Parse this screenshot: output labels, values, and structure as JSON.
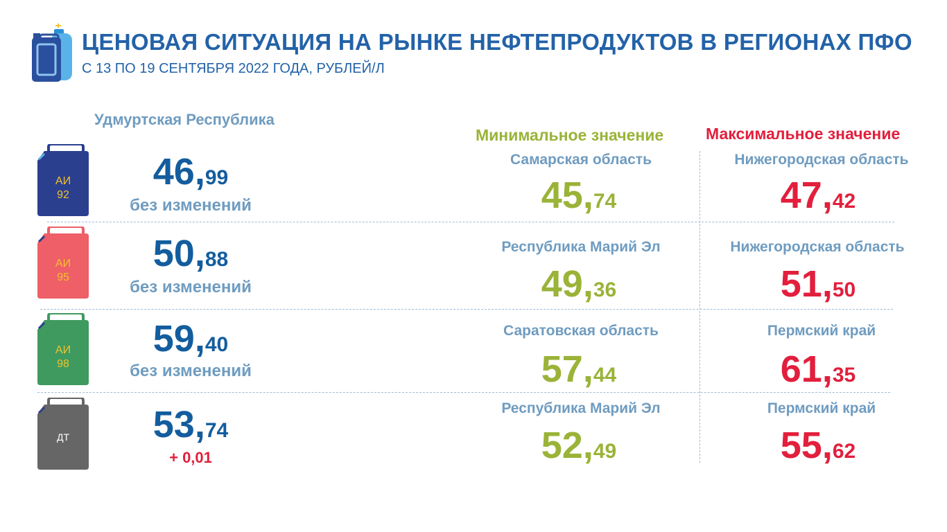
{
  "header": {
    "title": "ЦЕНОВАЯ СИТУАЦИЯ НА РЫНКЕ НЕФТЕПРОДУКТОВ В РЕГИОНАХ ПФО",
    "subtitle": "С 13 ПО 19 СЕНТЯБРЯ 2022 ГОДА, РУБЛЕЙ/Л"
  },
  "region_label": "Удмуртская Республика",
  "min_header": "Минимальное значение",
  "max_header": "Максимальное значение",
  "colors": {
    "blue": "#135d9e",
    "green": "#9ab338",
    "red": "#e21f3c",
    "label": "#6f9cc0"
  },
  "rows": [
    {
      "fuel": "АИ 92",
      "fuel_line1": "АИ",
      "fuel_line2": "92",
      "can_color": "#2b3f8f",
      "can_text_color": "#f2c230",
      "price_int": "46,",
      "price_frac": "99",
      "change": "без изменений",
      "min_region": "Самарская область",
      "min_int": "45,",
      "min_frac": "74",
      "max_region": "Нижегородская область",
      "max_int": "47,",
      "max_frac": "42"
    },
    {
      "fuel": "АИ 95",
      "fuel_line1": "АИ",
      "fuel_line2": "95",
      "can_color": "#ee5f67",
      "can_text_color": "#f2c230",
      "price_int": "50,",
      "price_frac": "88",
      "change": "без изменений",
      "min_region": "Республика Марий Эл",
      "min_int": "49,",
      "min_frac": "36",
      "max_region": "Нижегородская область",
      "max_int": "51,",
      "max_frac": "50"
    },
    {
      "fuel": "АИ 98",
      "fuel_line1": "АИ",
      "fuel_line2": "98",
      "can_color": "#3f9a5f",
      "can_text_color": "#f2c230",
      "price_int": "59,",
      "price_frac": "40",
      "change": "без изменений",
      "min_region": "Саратовская область",
      "min_int": "57,",
      "min_frac": "44",
      "max_region": "Пермский край",
      "max_int": "61,",
      "max_frac": "35"
    },
    {
      "fuel": "ДТ",
      "fuel_line1": "ДТ",
      "fuel_line2": "",
      "can_color": "#666666",
      "can_text_color": "#ffffff",
      "price_int": "53,",
      "price_frac": "74",
      "change": "+ 0,01",
      "min_region": "Республика Марий Эл",
      "min_int": "52,",
      "min_frac": "49",
      "max_region": "Пермский край",
      "max_int": "55,",
      "max_frac": "62"
    }
  ]
}
